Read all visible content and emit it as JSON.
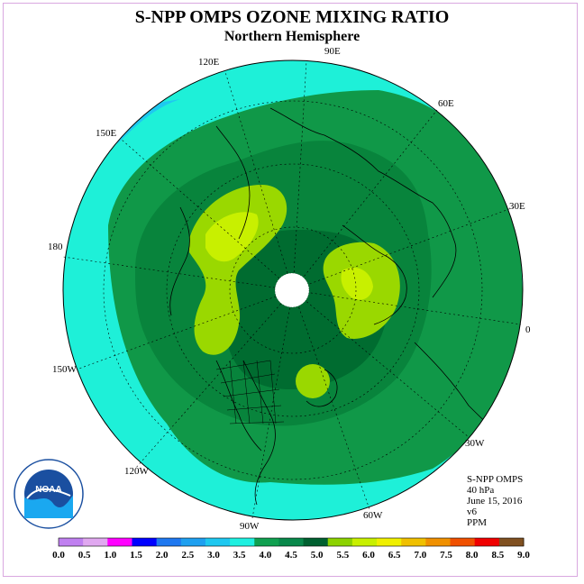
{
  "title": "S-NPP OMPS OZONE MIXING RATIO",
  "subtitle": "Northern Hemisphere",
  "longitude_labels": [
    "90E",
    "60E",
    "30E",
    "0",
    "30W",
    "60W",
    "90W",
    "120W",
    "150W",
    "180",
    "150E",
    "120E"
  ],
  "info": {
    "instrument": "S-NPP OMPS",
    "level": "40 hPa",
    "date": "June 15, 2016",
    "version": "v6",
    "units": "PPM"
  },
  "colorbar": {
    "ticks": [
      "0.0",
      "0.5",
      "1.0",
      "1.5",
      "2.0",
      "2.5",
      "3.0",
      "3.5",
      "4.0",
      "4.5",
      "5.0",
      "5.5",
      "6.0",
      "6.5",
      "7.0",
      "7.5",
      "8.0",
      "8.5",
      "9.0"
    ],
    "colors": [
      "#c080f0",
      "#e0a8f0",
      "#ff00ff",
      "#0000ff",
      "#1e78f0",
      "#1ea0f0",
      "#1ec8f0",
      "#1ef0e0",
      "#10a050",
      "#08884a",
      "#006030",
      "#8cd200",
      "#c8f000",
      "#f0f000",
      "#f0c000",
      "#f09000",
      "#f05000",
      "#f00000",
      "#805020"
    ]
  },
  "logo": {
    "text": "NOAA"
  },
  "colors": {
    "cyan": "#1ef0d8",
    "green_mid": "#109848",
    "green_dark": "#08843c",
    "green_darker": "#006c30",
    "lime": "#9ad800",
    "yellow_lime": "#c8f000"
  }
}
